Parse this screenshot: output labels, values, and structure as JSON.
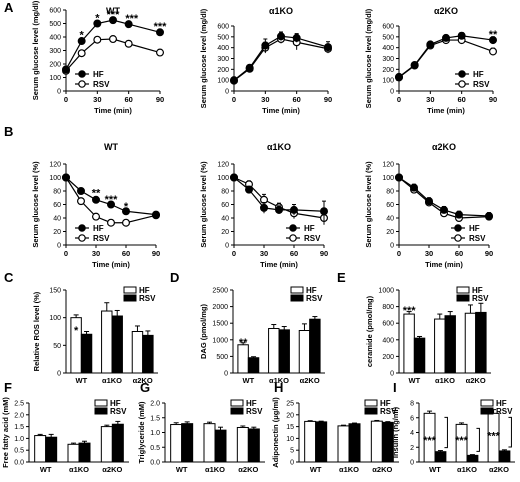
{
  "chart_data": [
    {
      "id": "A1",
      "panel_letter": "A",
      "type": "line",
      "title": "WT",
      "xlabel": "Time (min)",
      "ylabel": "Serum glucose level (mg/dl)",
      "xlim": [
        0,
        90
      ],
      "ylim": [
        0,
        600
      ],
      "xticks": [
        0,
        30,
        60,
        90
      ],
      "yticks": [
        0,
        100,
        200,
        300,
        400,
        500,
        600
      ],
      "x": [
        0,
        15,
        30,
        45,
        60,
        90
      ],
      "series": [
        {
          "name": "HF",
          "marker": "filled",
          "values": [
            160,
            370,
            500,
            525,
            495,
            435
          ],
          "err": [
            12,
            15,
            18,
            12,
            15,
            15
          ]
        },
        {
          "name": "RSV",
          "marker": "open",
          "values": [
            150,
            280,
            380,
            385,
            350,
            285
          ],
          "err": [
            12,
            15,
            15,
            12,
            12,
            12
          ]
        }
      ],
      "legend": "bottom-left",
      "annotations": [
        {
          "text": "*",
          "x": 15,
          "y": 420
        },
        {
          "text": "*",
          "x": 30,
          "y": 545
        },
        {
          "text": "***",
          "x": 45,
          "y": 570
        },
        {
          "text": "***",
          "x": 63,
          "y": 540
        },
        {
          "text": "***",
          "x": 90,
          "y": 480
        }
      ]
    },
    {
      "id": "A2",
      "type": "line",
      "title": "α1KO",
      "xlabel": "Time (min)",
      "ylabel": "Serum glucose level (mg/dl)",
      "xlim": [
        0,
        90
      ],
      "ylim": [
        0,
        600
      ],
      "xticks": [
        0,
        30,
        60,
        90
      ],
      "yticks": [
        0,
        100,
        200,
        300,
        400,
        500,
        600
      ],
      "x": [
        0,
        15,
        30,
        45,
        60,
        90
      ],
      "series": [
        {
          "name": "HF",
          "marker": "filled",
          "values": [
            100,
            215,
            420,
            505,
            490,
            405
          ],
          "err": [
            10,
            15,
            60,
            40,
            40,
            50
          ]
        },
        {
          "name": "RSV",
          "marker": "open",
          "values": [
            95,
            205,
            400,
            480,
            450,
            390
          ],
          "err": [
            10,
            15,
            50,
            40,
            70,
            40
          ]
        }
      ],
      "legend": "none",
      "annotations": []
    },
    {
      "id": "A3",
      "type": "line",
      "title": "α2KO",
      "xlabel": "Time (min)",
      "ylabel": "Serum glucose level (mg/dl)",
      "xlim": [
        0,
        90
      ],
      "ylim": [
        0,
        600
      ],
      "xticks": [
        0,
        30,
        60,
        90
      ],
      "yticks": [
        0,
        100,
        200,
        300,
        400,
        500,
        600
      ],
      "x": [
        0,
        15,
        30,
        45,
        60,
        90
      ],
      "series": [
        {
          "name": "HF",
          "marker": "filled",
          "values": [
            130,
            240,
            430,
            490,
            510,
            470
          ],
          "err": [
            10,
            20,
            25,
            20,
            30,
            30
          ]
        },
        {
          "name": "RSV",
          "marker": "open",
          "values": [
            125,
            235,
            420,
            470,
            470,
            365
          ],
          "err": [
            10,
            20,
            25,
            20,
            30,
            30
          ]
        }
      ],
      "legend": "bottom-right",
      "annotations": [
        {
          "text": "**",
          "x": 90,
          "y": 525
        }
      ]
    },
    {
      "id": "B1",
      "panel_letter": "B",
      "type": "line",
      "title": "WT",
      "xlabel": "Time (min)",
      "ylabel": "Serum glucose level (%)",
      "xlim": [
        0,
        90
      ],
      "ylim": [
        0,
        120
      ],
      "xticks": [
        0,
        30,
        60,
        90
      ],
      "yticks": [
        0,
        20,
        40,
        60,
        80,
        100,
        120
      ],
      "x": [
        0,
        15,
        30,
        45,
        60,
        90
      ],
      "series": [
        {
          "name": "HF",
          "marker": "filled",
          "values": [
            100,
            80,
            67,
            60,
            50,
            45
          ],
          "err": [
            2,
            3,
            3,
            3,
            3,
            3
          ]
        },
        {
          "name": "RSV",
          "marker": "open",
          "values": [
            100,
            65,
            42,
            33,
            33,
            44
          ],
          "err": [
            2,
            3,
            3,
            2,
            2,
            3
          ]
        }
      ],
      "legend": "bottom-left",
      "annotations": [
        {
          "text": "**",
          "x": 30,
          "y": 78
        },
        {
          "text": "***",
          "x": 45,
          "y": 68
        },
        {
          "text": "*",
          "x": 60,
          "y": 58
        }
      ]
    },
    {
      "id": "B2",
      "type": "line",
      "title": "α1KO",
      "xlabel": "Time (min)",
      "ylabel": "Serum glucose level (%)",
      "xlim": [
        0,
        90
      ],
      "ylim": [
        0,
        120
      ],
      "xticks": [
        0,
        30,
        60,
        90
      ],
      "yticks": [
        0,
        20,
        40,
        60,
        80,
        100,
        120
      ],
      "x": [
        0,
        15,
        30,
        45,
        60,
        90
      ],
      "series": [
        {
          "name": "HF",
          "marker": "filled",
          "values": [
            100,
            82,
            55,
            52,
            52,
            50
          ],
          "err": [
            2,
            5,
            8,
            6,
            8,
            15
          ]
        },
        {
          "name": "RSV",
          "marker": "open",
          "values": [
            100,
            90,
            67,
            56,
            47,
            40
          ],
          "err": [
            2,
            5,
            8,
            6,
            8,
            10
          ]
        }
      ],
      "legend": "bottom-right",
      "annotations": []
    },
    {
      "id": "B3",
      "type": "line",
      "title": "α2KO",
      "xlabel": "Time (min)",
      "ylabel": "Serum glucose level (%)",
      "xlim": [
        0,
        90
      ],
      "ylim": [
        0,
        120
      ],
      "xticks": [
        0,
        30,
        60,
        90
      ],
      "yticks": [
        0,
        20,
        40,
        60,
        80,
        100,
        120
      ],
      "x": [
        0,
        15,
        30,
        45,
        60,
        90
      ],
      "series": [
        {
          "name": "HF",
          "marker": "filled",
          "values": [
            100,
            85,
            65,
            52,
            45,
            43
          ],
          "err": [
            2,
            5,
            5,
            5,
            5,
            5
          ]
        },
        {
          "name": "RSV",
          "marker": "open",
          "values": [
            100,
            82,
            63,
            47,
            40,
            42
          ],
          "err": [
            2,
            5,
            5,
            5,
            5,
            5
          ]
        }
      ],
      "legend": "bottom-right",
      "annotations": []
    },
    {
      "id": "C",
      "panel_letter": "C",
      "type": "bar",
      "ylabel": "Relative ROS level (%)",
      "ylim": [
        0,
        150
      ],
      "yticks": [
        0,
        50,
        100,
        150
      ],
      "categories": [
        "WT",
        "α1KO",
        "α2KO"
      ],
      "series": [
        {
          "name": "HF",
          "fill": "open",
          "values": [
            100,
            112,
            75
          ],
          "err": [
            5,
            15,
            10
          ]
        },
        {
          "name": "RSV",
          "fill": "filled",
          "values": [
            70,
            103,
            68
          ],
          "err": [
            5,
            10,
            8
          ]
        }
      ],
      "legend": "top-right",
      "annotations": [
        {
          "text": "*",
          "category": 0,
          "y": 78
        }
      ]
    },
    {
      "id": "D",
      "panel_letter": "D",
      "type": "bar",
      "ylabel": "DAG (pmol/mg)",
      "ylim": [
        0,
        2500
      ],
      "yticks": [
        0,
        500,
        1000,
        1500,
        2000,
        2500
      ],
      "categories": [
        "WT",
        "α1KO",
        "α2KO"
      ],
      "series": [
        {
          "name": "HF",
          "fill": "open",
          "values": [
            850,
            1340,
            1280
          ],
          "err": [
            60,
            120,
            200
          ]
        },
        {
          "name": "RSV",
          "fill": "filled",
          "values": [
            460,
            1300,
            1620
          ],
          "err": [
            30,
            100,
            80
          ]
        }
      ],
      "legend": "top-right",
      "annotations": [
        {
          "text": "**",
          "category": 0,
          "y": 930
        }
      ]
    },
    {
      "id": "E",
      "panel_letter": "E",
      "type": "bar",
      "ylabel": "ceramide (pmol/mg)",
      "ylim": [
        0,
        1000
      ],
      "yticks": [
        0,
        200,
        400,
        600,
        800,
        1000
      ],
      "categories": [
        "WT",
        "α1KO",
        "α2KO"
      ],
      "series": [
        {
          "name": "HF",
          "fill": "open",
          "values": [
            710,
            650,
            720
          ],
          "err": [
            30,
            60,
            100
          ]
        },
        {
          "name": "RSV",
          "fill": "filled",
          "values": [
            420,
            690,
            730
          ],
          "err": [
            20,
            50,
            110
          ]
        }
      ],
      "legend": "top-right",
      "annotations": [
        {
          "text": "***",
          "category": 0,
          "y": 760
        }
      ]
    },
    {
      "id": "F",
      "panel_letter": "F",
      "type": "bar",
      "ylabel": "Free fatty acid (mM)",
      "ylim": [
        0,
        2.5
      ],
      "yticks": [
        0.0,
        0.5,
        1.0,
        1.5,
        2.0,
        2.5
      ],
      "categories": [
        "WT",
        "α1KO",
        "α2KO"
      ],
      "series": [
        {
          "name": "HF",
          "fill": "open",
          "values": [
            1.12,
            0.75,
            1.5
          ],
          "err": [
            0.05,
            0.05,
            0.06
          ]
        },
        {
          "name": "RSV",
          "fill": "filled",
          "values": [
            1.05,
            0.8,
            1.6
          ],
          "err": [
            0.12,
            0.08,
            0.12
          ]
        }
      ],
      "legend": "top-right",
      "annotations": []
    },
    {
      "id": "G",
      "panel_letter": "G",
      "type": "bar",
      "ylabel": "Triglyceride (mM)",
      "ylim": [
        0,
        2.0
      ],
      "yticks": [
        0.0,
        0.5,
        1.0,
        1.5,
        2.0
      ],
      "categories": [
        "WT",
        "α1KO",
        "α2KO"
      ],
      "series": [
        {
          "name": "HF",
          "fill": "open",
          "values": [
            1.27,
            1.3,
            1.17
          ],
          "err": [
            0.06,
            0.05,
            0.05
          ]
        },
        {
          "name": "RSV",
          "fill": "filled",
          "values": [
            1.3,
            1.08,
            1.12
          ],
          "err": [
            0.06,
            0.1,
            0.06
          ]
        }
      ],
      "legend": "top-right",
      "annotations": []
    },
    {
      "id": "H",
      "panel_letter": "H",
      "type": "bar",
      "ylabel": "Adiponectin (μg/ml)",
      "ylim": [
        0,
        25
      ],
      "yticks": [
        0,
        5,
        10,
        15,
        20,
        25
      ],
      "categories": [
        "WT",
        "α1KO",
        "α2KO"
      ],
      "series": [
        {
          "name": "HF",
          "fill": "open",
          "values": [
            17.2,
            15.3,
            17.3
          ],
          "err": [
            0.3,
            0.3,
            0.3
          ]
        },
        {
          "name": "RSV",
          "fill": "filled",
          "values": [
            17.0,
            16.2,
            16.8
          ],
          "err": [
            0.3,
            0.3,
            0.3
          ]
        }
      ],
      "legend": "top-right",
      "annotations": []
    },
    {
      "id": "I",
      "panel_letter": "I",
      "type": "bar",
      "ylabel": "Insulin (ng/ml)",
      "ylim": [
        0,
        8
      ],
      "yticks": [
        0,
        2,
        4,
        6,
        8
      ],
      "categories": [
        "WT",
        "α1KO",
        "α2KO"
      ],
      "series": [
        {
          "name": "HF",
          "fill": "open",
          "values": [
            6.6,
            5.1,
            6.6
          ],
          "err": [
            0.3,
            0.2,
            0.5
          ]
        },
        {
          "name": "RSV",
          "fill": "filled",
          "values": [
            1.4,
            0.9,
            1.5
          ],
          "err": [
            0.15,
            0.1,
            0.15
          ]
        }
      ],
      "legend": "top-right",
      "annotations": [
        {
          "text": "***",
          "category": 0,
          "y": 3.0
        },
        {
          "text": "***",
          "category": 1,
          "y": 3.0
        },
        {
          "text": "***",
          "category": 2,
          "y": 3.6
        }
      ]
    }
  ]
}
